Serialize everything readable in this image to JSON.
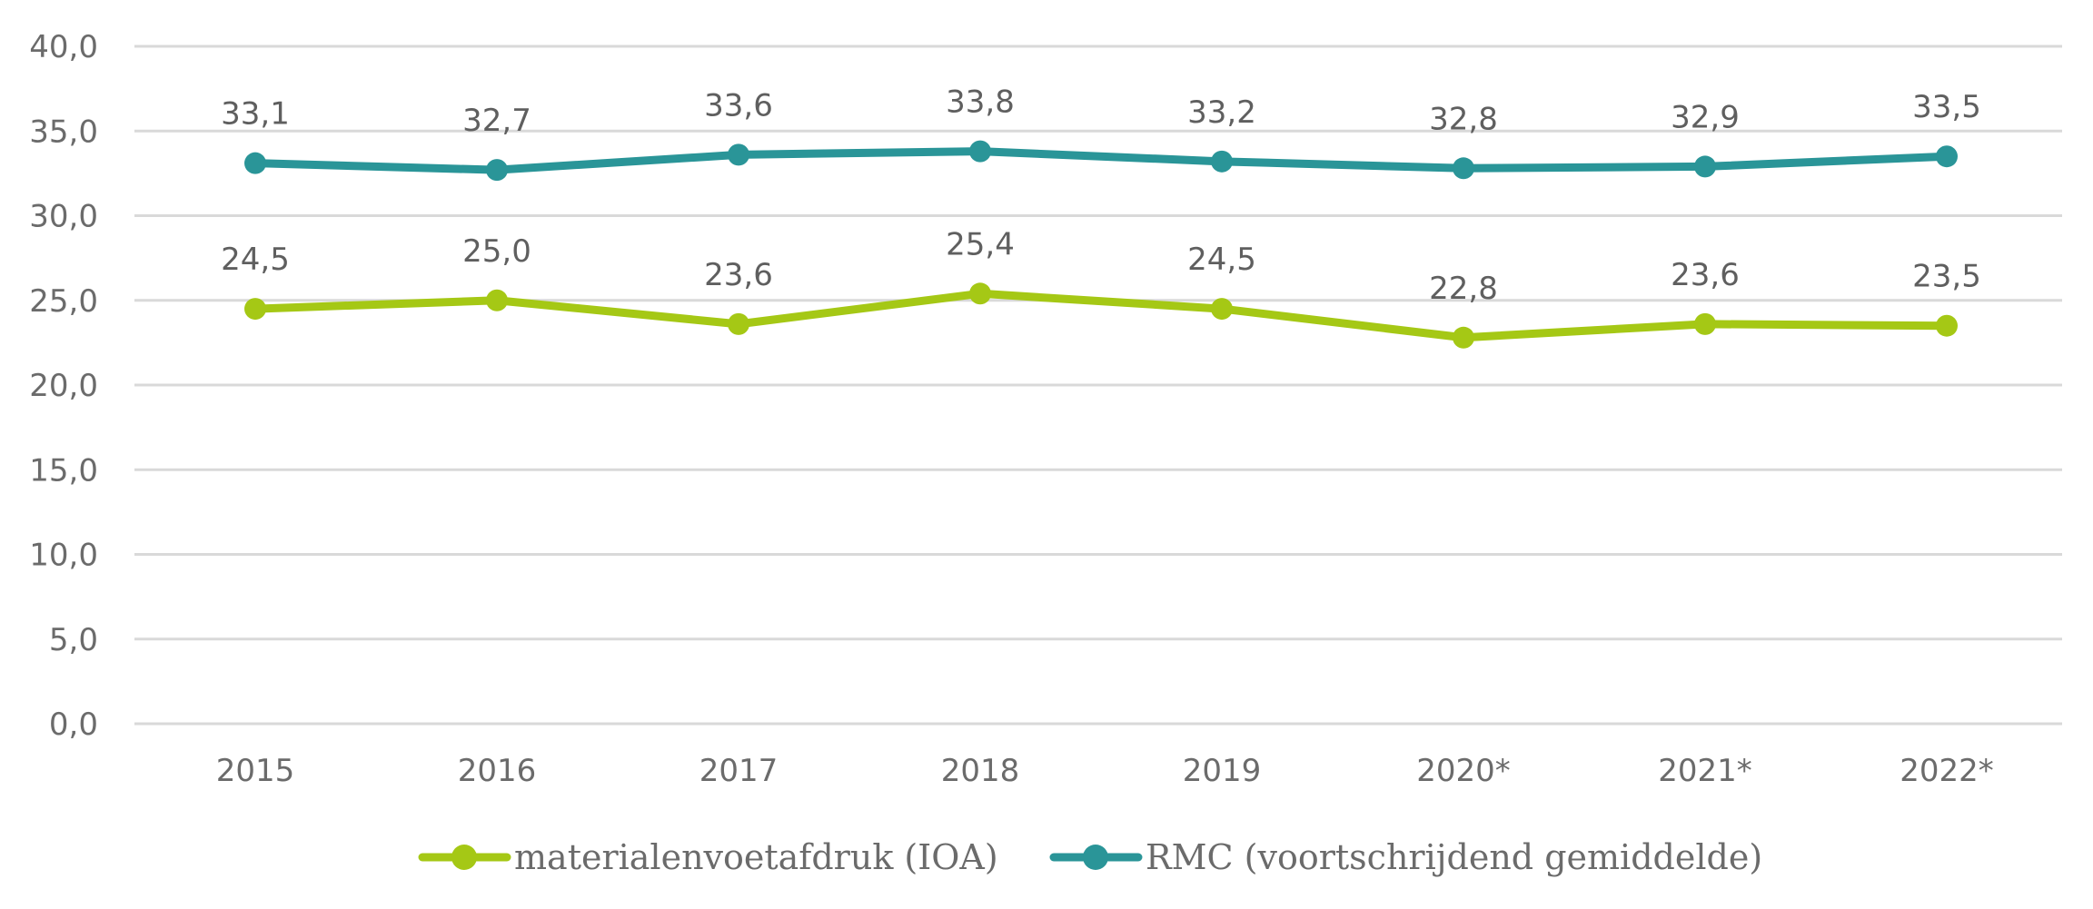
{
  "chart_data": {
    "type": "line",
    "categories": [
      "2015",
      "2016",
      "2017",
      "2018",
      "2019",
      "2020*",
      "2021*",
      "2022*"
    ],
    "ylim": [
      0,
      40
    ],
    "yticks": [
      "0,0",
      "5,0",
      "10,0",
      "15,0",
      "20,0",
      "25,0",
      "30,0",
      "35,0",
      "40,0"
    ],
    "grid": true,
    "legend_position": "bottom",
    "series": [
      {
        "name": "materialenvoetafdruk (IOA)",
        "color": "#a5c815",
        "values": [
          24.5,
          25.0,
          23.6,
          25.4,
          24.5,
          22.8,
          23.6,
          23.5
        ],
        "labels": [
          "24,5",
          "25,0",
          "23,6",
          "25,4",
          "24,5",
          "22,8",
          "23,6",
          "23,5"
        ]
      },
      {
        "name": "RMC (voortschrijdend gemiddelde)",
        "color": "#2a9598",
        "values": [
          33.1,
          32.7,
          33.6,
          33.8,
          33.2,
          32.8,
          32.9,
          33.5
        ],
        "labels": [
          "33,1",
          "32,7",
          "33,6",
          "33,8",
          "33,2",
          "32,8",
          "32,9",
          "33,5"
        ]
      }
    ]
  }
}
